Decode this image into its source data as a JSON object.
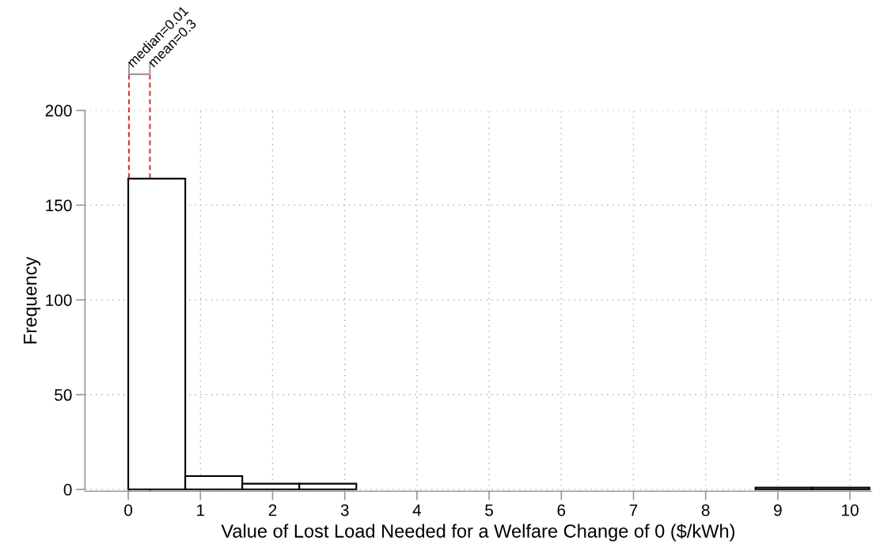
{
  "chart_data": {
    "type": "histogram",
    "xlabel": "Value of Lost Load Needed for a Welfare Change of 0 ($/kWh)",
    "ylabel": "Frequency",
    "bins": [
      0,
      0.79,
      1.58,
      2.37,
      3.16,
      3.95,
      4.74,
      5.53,
      6.32,
      7.11,
      7.9,
      8.69,
      9.48,
      10.27
    ],
    "values": [
      164,
      7,
      3,
      3,
      0,
      0,
      0,
      0,
      0,
      0,
      0,
      1,
      1
    ],
    "color": "#ffffff",
    "xlim": [
      -0.6,
      10.3
    ],
    "xticks": [
      0,
      1,
      2,
      3,
      4,
      5,
      6,
      7,
      8,
      9,
      10
    ],
    "ylim": [
      -1,
      200
    ],
    "yticks": [
      0,
      50,
      100,
      150,
      200
    ],
    "grid": true,
    "ref_lines": [
      {
        "axis": "x",
        "value": 0.01,
        "label": "median=0.01",
        "color": "#e8312f",
        "line_style": "dashed"
      },
      {
        "axis": "x",
        "value": 0.3,
        "label": "mean=0.3",
        "color": "#e8312f",
        "line_style": "dashed"
      }
    ]
  }
}
